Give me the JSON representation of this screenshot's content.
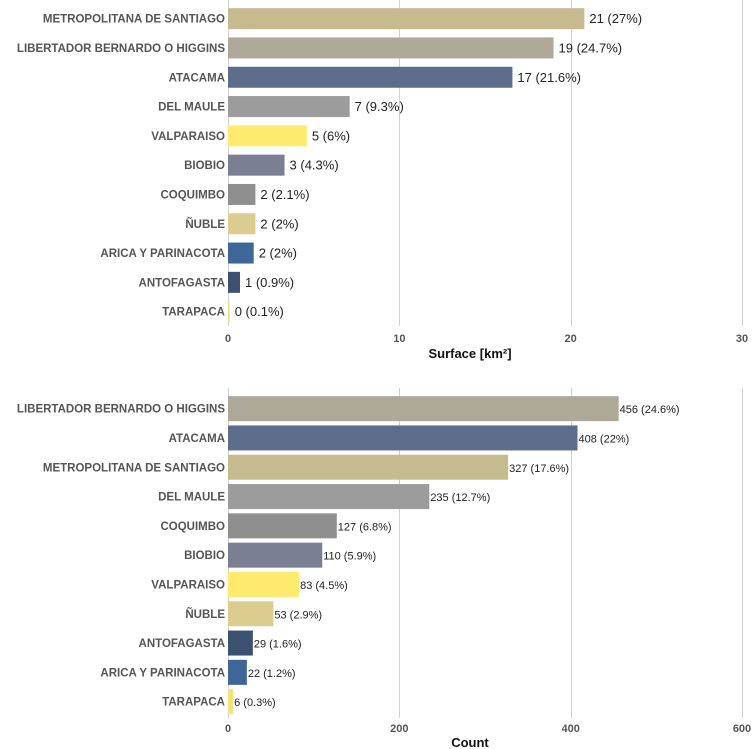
{
  "chart_data": [
    {
      "type": "bar",
      "orientation": "horizontal",
      "xlabel": "Surface [km²]",
      "xlim": [
        0,
        30
      ],
      "xticks": [
        0,
        10,
        20,
        30
      ],
      "grid": true,
      "categories": [
        "METROPOLITANA DE SANTIAGO",
        "LIBERTADOR BERNARDO O HIGGINS",
        "ATACAMA",
        "DEL MAULE",
        "VALPARAISO",
        "BIOBIO",
        "COQUIMBO",
        "ÑUBLE",
        "ARICA Y PARINACOTA",
        "ANTOFAGASTA",
        "TARAPACA"
      ],
      "values": [
        20.8,
        19.0,
        16.6,
        7.1,
        4.6,
        3.3,
        1.6,
        1.6,
        1.5,
        0.7,
        0.1
      ],
      "data_labels": [
        "21 (27%)",
        "19 (24.7%)",
        "17 (21.6%)",
        "7 (9.3%)",
        "5 (6%)",
        "3 (4.3%)",
        "2 (2.1%)",
        "2 (2%)",
        "2 (2%)",
        "1 (0.9%)",
        "0 (0.1%)"
      ],
      "colors": [
        "#c6bb8f",
        "#aea899",
        "#5f6d8c",
        "#9c9c9c",
        "#fdea6e",
        "#7b7f93",
        "#8f8f8f",
        "#dccd8e",
        "#3e6697",
        "#3c5070",
        "#f3e37c"
      ]
    },
    {
      "type": "bar",
      "orientation": "horizontal",
      "xlabel": "Count",
      "xlim": [
        0,
        600
      ],
      "xticks": [
        0,
        200,
        400,
        600
      ],
      "grid": true,
      "categories": [
        "LIBERTADOR BERNARDO O HIGGINS",
        "ATACAMA",
        "METROPOLITANA DE SANTIAGO",
        "DEL MAULE",
        "COQUIMBO",
        "BIOBIO",
        "VALPARAISO",
        "ÑUBLE",
        "ANTOFAGASTA",
        "ARICA Y PARINACOTA",
        "TARAPACA"
      ],
      "values": [
        456,
        408,
        327,
        235,
        127,
        110,
        83,
        53,
        29,
        22,
        6
      ],
      "data_labels": [
        "456 (24.6%)",
        "408 (22%)",
        "327 (17.6%)",
        "235 (12.7%)",
        "127 (6.8%)",
        "110 (5.9%)",
        "83 (4.5%)",
        "53 (2.9%)",
        "29 (1.6%)",
        "22 (1.2%)",
        "6 (0.3%)"
      ],
      "colors": [
        "#aea899",
        "#5f6d8c",
        "#c6bb8f",
        "#9c9c9c",
        "#8f8f8f",
        "#7b7f93",
        "#fdea6e",
        "#dccd8e",
        "#3c5070",
        "#3e6697",
        "#f3e37c"
      ]
    }
  ]
}
